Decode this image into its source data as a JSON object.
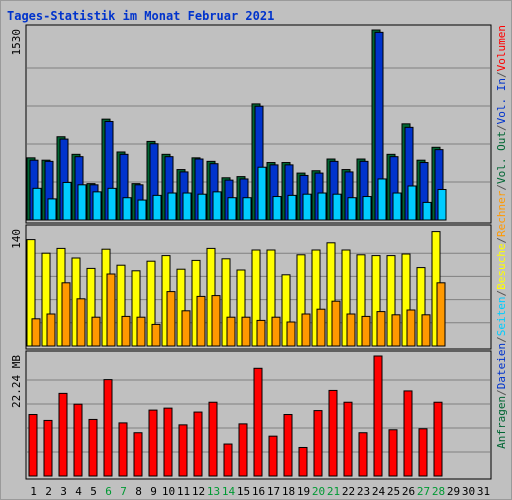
{
  "chart_data": {
    "type": "bar",
    "title": "Tages-Statistik im Monat Februar 2021",
    "categories": [
      "1",
      "2",
      "3",
      "4",
      "5",
      "6",
      "7",
      "8",
      "9",
      "10",
      "11",
      "12",
      "13",
      "14",
      "15",
      "16",
      "17",
      "18",
      "19",
      "20",
      "21",
      "22",
      "23",
      "24",
      "25",
      "26",
      "27",
      "28",
      "29",
      "30",
      "31"
    ],
    "weekend_days": [
      "6",
      "7",
      "13",
      "14",
      "20",
      "21",
      "27",
      "28"
    ],
    "panels": [
      {
        "id": "top",
        "tick_label": "1530",
        "ylim": [
          0,
          1620
        ],
        "series": [
          {
            "name": "Anfragen",
            "color": "#006633",
            "values": [
              530,
              510,
              710,
              560,
              310,
              860,
              580,
              310,
              670,
              560,
              430,
              530,
              500,
              360,
              370,
              990,
              490,
              490,
              400,
              420,
              520,
              430,
              520,
              1620,
              560,
              820,
              510,
              620,
              null,
              null,
              null
            ]
          },
          {
            "name": "Dateien",
            "color": "#0033cc",
            "values": [
              510,
              500,
              690,
              540,
              300,
              840,
              560,
              300,
              650,
              540,
              410,
              520,
              480,
              340,
              350,
              970,
              470,
              470,
              380,
              400,
              500,
              410,
              500,
              1600,
              540,
              790,
              490,
              600,
              null,
              null,
              null
            ]
          },
          {
            "name": "Seiten",
            "color": "#00ccff",
            "values": [
              270,
              180,
              320,
              300,
              240,
              270,
              190,
              170,
              210,
              230,
              230,
              220,
              240,
              190,
              190,
              450,
              200,
              210,
              220,
              230,
              220,
              190,
              200,
              350,
              230,
              290,
              150,
              260,
              null,
              null,
              null
            ]
          }
        ]
      },
      {
        "id": "middle",
        "tick_label": "140",
        "ylim": [
          0,
          145
        ],
        "series": [
          {
            "name": "Besuche",
            "color": "#ffff00",
            "values": [
              133,
              116,
              122,
              110,
              97,
              121,
              101,
              94,
              106,
              113,
              96,
              107,
              122,
              109,
              95,
              120,
              120,
              89,
              114,
              120,
              129,
              120,
              114,
              113,
              113,
              115,
              98,
              143,
              null,
              null,
              null
            ]
          },
          {
            "name": "Rechner",
            "color": "#ff9900",
            "values": [
              34,
              40,
              79,
              59,
              36,
              90,
              37,
              36,
              27,
              68,
              44,
              62,
              63,
              36,
              36,
              32,
              36,
              30,
              40,
              46,
              56,
              40,
              37,
              43,
              39,
              45,
              39,
              79,
              null,
              null,
              null
            ]
          }
        ]
      },
      {
        "id": "bottom",
        "tick_label": "22.24 MB",
        "ylim": [
          0,
          24.4
        ],
        "series": [
          {
            "name": "Volumen",
            "color": "#ff0000",
            "values": [
              12.5,
              11.3,
              16.8,
              14.6,
              11.5,
              19.6,
              10.8,
              8.8,
              13.4,
              13.8,
              10.4,
              13.0,
              15.0,
              6.5,
              10.6,
              21.9,
              8.1,
              12.5,
              5.8,
              13.3,
              17.4,
              15.0,
              8.8,
              24.4,
              9.4,
              17.3,
              9.6,
              15.0,
              null,
              null,
              null
            ]
          }
        ]
      }
    ],
    "legend": [
      {
        "text": "Anfragen",
        "color": "#006633"
      },
      {
        "text": "Dateien",
        "color": "#0033cc"
      },
      {
        "text": "Seiten",
        "color": "#00ccff"
      },
      {
        "text": "Besuche",
        "color": "#ffff00"
      },
      {
        "text": "Rechner",
        "color": "#ff9900"
      },
      {
        "text": "Vol. Out",
        "color": "#006633"
      },
      {
        "text": "Vol. In",
        "color": "#0033cc"
      },
      {
        "text": "Volumen",
        "color": "#ff0000"
      }
    ],
    "legend_separator": "/",
    "legend_separator_color": "#555555",
    "legend_placement": "right, rotated",
    "grid": true,
    "colors": {
      "background": "#c0c0c0",
      "title": "#0033cc",
      "grid": "#808080",
      "weekday_label": "#000000",
      "weekend_label": "#009933"
    }
  }
}
